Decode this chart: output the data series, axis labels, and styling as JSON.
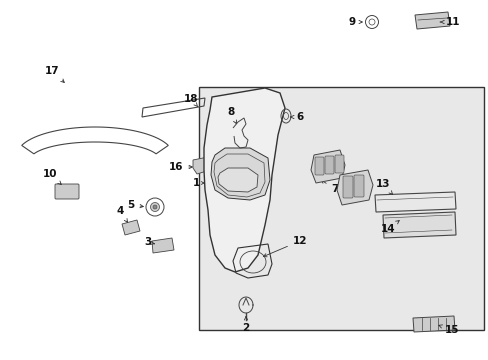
{
  "fig_w": 4.89,
  "fig_h": 3.6,
  "dpi": 100,
  "bg": "#ffffff",
  "panel_bg": "#e8e8e8",
  "lc": "#444444",
  "lc2": "#666666",
  "panel": [
    199,
    87,
    285,
    243
  ],
  "labels": {
    "1": [
      196,
      183,
      210,
      183
    ],
    "2": [
      245,
      326,
      245,
      310
    ],
    "3": [
      150,
      243,
      165,
      243
    ],
    "4": [
      120,
      210,
      130,
      224
    ],
    "5": [
      131,
      207,
      148,
      207
    ],
    "6": [
      300,
      117,
      286,
      117
    ],
    "7": [
      335,
      188,
      318,
      176
    ],
    "8": [
      231,
      113,
      231,
      128
    ],
    "9": [
      355,
      23,
      371,
      23
    ],
    "10": [
      53,
      175,
      67,
      188
    ],
    "11": [
      451,
      22,
      435,
      28
    ],
    "12": [
      300,
      240,
      288,
      253
    ],
    "13": [
      383,
      185,
      383,
      198
    ],
    "14": [
      387,
      228,
      395,
      216
    ],
    "15": [
      449,
      330,
      435,
      325
    ],
    "16": [
      178,
      168,
      193,
      168
    ],
    "17": [
      55,
      72,
      67,
      86
    ],
    "18": [
      192,
      101,
      205,
      108
    ]
  }
}
